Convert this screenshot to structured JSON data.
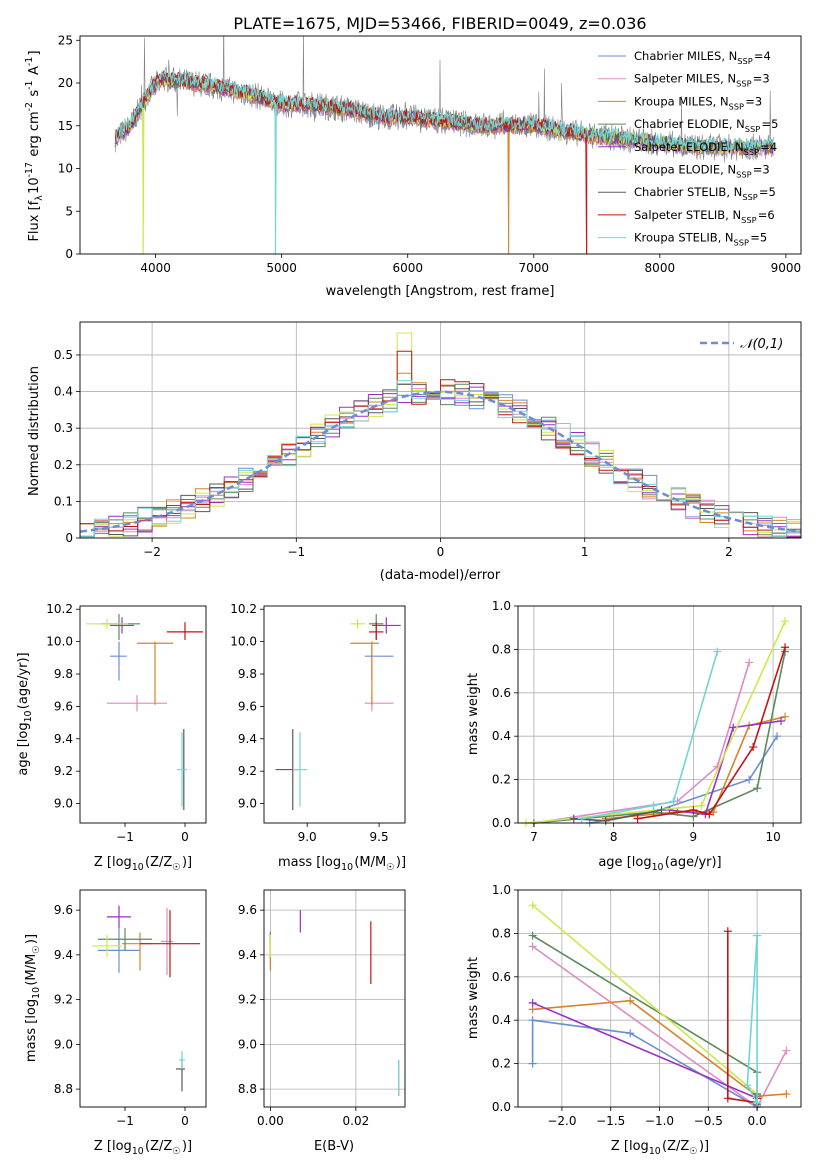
{
  "title": "PLATE=1675, MJD=53466, FIBERID=0049, z=0.036",
  "colors": [
    "#6a8dd6",
    "#e08ac4",
    "#d9822b",
    "#5d8a5d",
    "#9b30c4",
    "#cde84c",
    "#595959",
    "#c41414",
    "#6fd6d6"
  ],
  "legend": [
    "Chabrier MILES, N$_{SSP}$=4",
    "Salpeter MILES, N$_{SSP}$=3",
    "Kroupa MILES, N$_{SSP}$=3",
    "Chabrier ELODIE, N$_{SSP}$=5",
    "Salpeter ELODIE, N$_{SSP}$=4",
    "Kroupa ELODIE, N$_{SSP}$=3",
    "Chabrier STELIB, N$_{SSP}$=5",
    "Salpeter STELIB, N$_{SSP}$=6",
    "Kroupa STELIB, N$_{SSP}$=5"
  ],
  "chart_data": [
    {
      "id": "spectrum",
      "type": "line",
      "xlabel": "wavelength [Angstrom, rest frame]",
      "ylabel": "Flux [f$_\\lambda$10$^{-17}$ erg cm$^{-2}$ s$^{-1}$ A$^{-1}$]",
      "xlim": [
        3400,
        9120
      ],
      "ylim": [
        0,
        25.5
      ],
      "xticks": [
        4000,
        5000,
        6000,
        7000,
        8000,
        9000
      ],
      "yticks": [
        0,
        5,
        10,
        15,
        20,
        25
      ],
      "data_points": [
        [
          3680,
          13.5
        ],
        [
          3800,
          15
        ],
        [
          3950,
          19
        ],
        [
          4050,
          20.5
        ],
        [
          4300,
          20
        ],
        [
          4500,
          19.5
        ],
        [
          4800,
          18.5
        ],
        [
          5000,
          17.5
        ],
        [
          5200,
          17.5
        ],
        [
          5500,
          17
        ],
        [
          5800,
          16
        ],
        [
          6000,
          16
        ],
        [
          6300,
          15.5
        ],
        [
          6600,
          15
        ],
        [
          6800,
          15
        ],
        [
          7000,
          15
        ],
        [
          7200,
          14.5
        ],
        [
          7400,
          14
        ],
        [
          7700,
          13.5
        ],
        [
          8000,
          13
        ],
        [
          8300,
          12.5
        ],
        [
          8600,
          12.5
        ],
        [
          8900,
          12.5
        ]
      ],
      "model_drops": [
        {
          "series": 5,
          "x": 3900,
          "y_min": 0
        },
        {
          "series": 8,
          "x": 4950,
          "y_min": 0
        },
        {
          "series": 2,
          "x": 6800,
          "y_min": 0
        },
        {
          "series": 7,
          "x": 7420,
          "y_min": 0
        }
      ],
      "grid": false,
      "legend_position": "upper right"
    },
    {
      "id": "residuals",
      "type": "histogram",
      "xlabel": "(data-model)/error",
      "ylabel": "Normed distribution",
      "xlim": [
        -2.5,
        2.5
      ],
      "ylim": [
        0,
        0.59
      ],
      "xticks": [
        -2,
        -1,
        0,
        1,
        2
      ],
      "yticks": [
        0,
        0.1,
        0.2,
        0.3,
        0.4,
        0.5
      ],
      "reference_curve": "$\\mathcal{N}(0,1)$",
      "bin_width": 0.1,
      "peak_values_at_minus_0.3": [
        0.39,
        0.42,
        0.45,
        0.42,
        0.37,
        0.56,
        0.42,
        0.51,
        0.43
      ],
      "grid": true,
      "legend_position": "upper right"
    },
    {
      "id": "age_vs_Z",
      "type": "errorbar",
      "xlabel": "Z [log$_{10}$(Z/Z$_\\odot$)]",
      "ylabel": "age  [log$_{10}$(age/yr)]",
      "xlim": [
        -1.75,
        0.35
      ],
      "ylim": [
        8.88,
        10.22
      ],
      "xticks": [
        -1,
        0
      ],
      "yticks": [
        9.0,
        9.2,
        9.4,
        9.6,
        9.8,
        10.0,
        10.2
      ],
      "points": [
        {
          "series": 0,
          "x": -1.1,
          "y": 9.91,
          "xerr": [
            0.15,
            0.13
          ],
          "yerr": [
            0.15,
            0.09
          ]
        },
        {
          "series": 1,
          "x": -0.8,
          "y": 9.62,
          "xerr": [
            0.5,
            0.5
          ],
          "yerr": [
            0.05,
            0.05
          ]
        },
        {
          "series": 2,
          "x": -0.5,
          "y": 9.99,
          "xerr": [
            0.3,
            0.3
          ],
          "yerr": [
            0.38,
            0.01
          ]
        },
        {
          "series": 3,
          "x": -1.1,
          "y": 10.11,
          "xerr": [
            0.3,
            0.35
          ],
          "yerr": [
            0.1,
            0.06
          ]
        },
        {
          "series": 4,
          "x": -1.05,
          "y": 10.1,
          "xerr": [
            0.2,
            0.2
          ],
          "yerr": [
            0.05,
            0.05
          ]
        },
        {
          "series": 5,
          "x": -1.3,
          "y": 10.11,
          "xerr": [
            0.35,
            0.35
          ],
          "yerr": [
            0.03,
            0.03
          ]
        },
        {
          "series": 6,
          "x": -0.02,
          "y": 9.21,
          "xerr": [
            0.02,
            0.02
          ],
          "yerr": [
            0.25,
            0.25
          ]
        },
        {
          "series": 7,
          "x": 0.0,
          "y": 10.06,
          "xerr": [
            0.3,
            0.3
          ],
          "yerr": [
            0.05,
            0.06
          ]
        },
        {
          "series": 8,
          "x": -0.05,
          "y": 9.21,
          "xerr": [
            0.08,
            0.08
          ],
          "yerr": [
            0.23,
            0.23
          ]
        }
      ]
    },
    {
      "id": "age_vs_mass",
      "type": "errorbar",
      "xlabel": "mass [log$_{10}$(M/M$_\\odot$)]",
      "ylabel": "",
      "xlim": [
        8.7,
        9.68
      ],
      "ylim": [
        8.88,
        10.22
      ],
      "xticks": [
        9.0,
        9.5
      ],
      "yticks": [
        9.0,
        9.2,
        9.4,
        9.6,
        9.8,
        10.0,
        10.2
      ],
      "points": [
        {
          "series": 0,
          "x": 9.45,
          "y": 9.91,
          "xerr": [
            0.05,
            0.15
          ],
          "yerr": [
            0.15,
            0.09
          ]
        },
        {
          "series": 1,
          "x": 9.45,
          "y": 9.62,
          "xerr": [
            0.05,
            0.15
          ],
          "yerr": [
            0.05,
            0.05
          ]
        },
        {
          "series": 2,
          "x": 9.45,
          "y": 9.99,
          "xerr": [
            0.15,
            0.05
          ],
          "yerr": [
            0.38,
            0.01
          ]
        },
        {
          "series": 3,
          "x": 9.48,
          "y": 10.11,
          "xerr": [
            0.05,
            0.05
          ],
          "yerr": [
            0.1,
            0.06
          ]
        },
        {
          "series": 4,
          "x": 9.55,
          "y": 10.1,
          "xerr": [
            0.1,
            0.1
          ],
          "yerr": [
            0.05,
            0.05
          ]
        },
        {
          "series": 5,
          "x": 9.35,
          "y": 10.11,
          "xerr": [
            0.05,
            0.05
          ],
          "yerr": [
            0.03,
            0.03
          ]
        },
        {
          "series": 6,
          "x": 8.9,
          "y": 9.21,
          "xerr": [
            0.12,
            0.05
          ],
          "yerr": [
            0.25,
            0.25
          ]
        },
        {
          "series": 7,
          "x": 9.48,
          "y": 10.06,
          "xerr": [
            0.05,
            0.05
          ],
          "yerr": [
            0.05,
            0.06
          ]
        },
        {
          "series": 8,
          "x": 8.95,
          "y": 9.21,
          "xerr": [
            0.05,
            0.05
          ],
          "yerr": [
            0.23,
            0.23
          ]
        }
      ]
    },
    {
      "id": "weight_vs_age",
      "type": "line",
      "xlabel": "age  [log$_{10}$(age/yr)]",
      "ylabel": "mass weight",
      "xlim": [
        6.8,
        10.35
      ],
      "ylim": [
        0,
        1.0
      ],
      "xticks": [
        7,
        8,
        9,
        10
      ],
      "yticks": [
        0.0,
        0.2,
        0.4,
        0.6,
        0.8,
        1.0
      ],
      "grid": true,
      "series": [
        {
          "ci": 0,
          "x": [
            7.7,
            8.5,
            9.7,
            10.05
          ],
          "y": [
            0.0,
            0.05,
            0.2,
            0.4
          ]
        },
        {
          "ci": 1,
          "x": [
            7.0,
            8.8,
            9.3,
            9.7
          ],
          "y": [
            0.0,
            0.1,
            0.26,
            0.74
          ]
        },
        {
          "ci": 2,
          "x": [
            7.9,
            8.8,
            9.25,
            9.7,
            10.15
          ],
          "y": [
            0.02,
            0.05,
            0.05,
            0.45,
            0.49
          ]
        },
        {
          "ci": 3,
          "x": [
            7.0,
            8.5,
            9.0,
            9.8,
            10.15
          ],
          "y": [
            0.0,
            0.05,
            0.03,
            0.16,
            0.79
          ]
        },
        {
          "ci": 4,
          "x": [
            8.7,
            9.15,
            9.5,
            10.1
          ],
          "y": [
            0.06,
            0.04,
            0.44,
            0.47
          ]
        },
        {
          "ci": 5,
          "x": [
            6.9,
            9.1,
            10.15
          ],
          "y": [
            0.0,
            0.08,
            0.93
          ]
        },
        {
          "ci": 6,
          "x": [
            7.5,
            7.9,
            8.6
          ],
          "y": [
            0.02,
            0.01,
            0.06
          ]
        },
        {
          "ci": 7,
          "x": [
            8.3,
            9.0,
            9.2,
            9.75,
            10.15
          ],
          "y": [
            0.02,
            0.06,
            0.04,
            0.35,
            0.81
          ]
        },
        {
          "ci": 8,
          "x": [
            7.6,
            8.5,
            8.75,
            9.3
          ],
          "y": [
            0.02,
            0.08,
            0.1,
            0.79
          ]
        }
      ]
    },
    {
      "id": "mass_vs_Z",
      "type": "errorbar",
      "xlabel": "Z [log$_{10}$(Z/Z$_\\odot$)]",
      "ylabel": "mass [log$_{10}$(M/M$_\\odot$)]",
      "xlim": [
        -1.75,
        0.35
      ],
      "ylim": [
        8.72,
        9.69
      ],
      "xticks": [
        -1,
        0
      ],
      "yticks": [
        8.8,
        9.0,
        9.2,
        9.4,
        9.6
      ],
      "points": [
        {
          "series": 0,
          "x": -1.1,
          "y": 9.42,
          "xerr": [
            0.35,
            0.35
          ],
          "yerr": [
            0.1,
            0.1
          ]
        },
        {
          "series": 1,
          "x": -0.3,
          "y": 9.46,
          "xerr": [
            0.1,
            0.1
          ],
          "yerr": [
            0.15,
            0.15
          ]
        },
        {
          "series": 2,
          "x": -0.75,
          "y": 9.45,
          "xerr": [
            0.3,
            0.2
          ],
          "yerr": [
            0.12,
            0.05
          ]
        },
        {
          "series": 3,
          "x": -1.0,
          "y": 9.47,
          "xerr": [
            0.45,
            0.45
          ],
          "yerr": [
            0.05,
            0.05
          ]
        },
        {
          "series": 4,
          "x": -1.1,
          "y": 9.57,
          "xerr": [
            0.2,
            0.2
          ],
          "yerr": [
            0.05,
            0.05
          ]
        },
        {
          "series": 5,
          "x": -1.3,
          "y": 9.44,
          "xerr": [
            0.25,
            0.25
          ],
          "yerr": [
            0.05,
            0.05
          ]
        },
        {
          "series": 6,
          "x": -0.05,
          "y": 8.89,
          "xerr": [
            0.1,
            0.05
          ],
          "yerr": [
            0.1,
            0.05
          ]
        },
        {
          "series": 7,
          "x": -0.25,
          "y": 9.45,
          "xerr": [
            0.5,
            0.5
          ],
          "yerr": [
            0.15,
            0.15
          ]
        },
        {
          "series": 8,
          "x": -0.05,
          "y": 8.93,
          "xerr": [
            0.05,
            0.05
          ],
          "yerr": [
            0.04,
            0.04
          ]
        }
      ]
    },
    {
      "id": "mass_vs_ebv",
      "type": "errorbar",
      "xlabel": "E(B-V)",
      "ylabel": "",
      "xlim": [
        -0.0015,
        0.0315
      ],
      "ylim": [
        8.72,
        9.69
      ],
      "xticks": [
        0.0,
        0.02
      ],
      "yticks": [
        8.8,
        9.0,
        9.2,
        9.4,
        9.6
      ],
      "grid": true,
      "points": [
        {
          "series": 0,
          "x": 0.0,
          "y": 9.42,
          "xerr": [
            0,
            0
          ],
          "yerr": [
            0.05,
            0.05
          ]
        },
        {
          "series": 1,
          "x": 0.0,
          "y": 9.46,
          "xerr": [
            0,
            0
          ],
          "yerr": [
            0.05,
            0.05
          ]
        },
        {
          "series": 2,
          "x": 0.0,
          "y": 9.45,
          "xerr": [
            0,
            0
          ],
          "yerr": [
            0.12,
            0.05
          ]
        },
        {
          "series": 3,
          "x": 0.0,
          "y": 9.47,
          "xerr": [
            0,
            0
          ],
          "yerr": [
            0.03,
            0.03
          ]
        },
        {
          "series": 4,
          "x": 0.007,
          "y": 9.55,
          "xerr": [
            0,
            0
          ],
          "yerr": [
            0.05,
            0.05
          ]
        },
        {
          "series": 5,
          "x": 0.0,
          "y": 9.44,
          "xerr": [
            0,
            0
          ],
          "yerr": [
            0.05,
            0.05
          ]
        },
        {
          "series": 6,
          "x": 0.03,
          "y": 8.85,
          "xerr": [
            0,
            0
          ],
          "yerr": [
            0.08,
            0.08
          ]
        },
        {
          "series": 7,
          "x": 0.0235,
          "y": 9.41,
          "xerr": [
            0,
            0
          ],
          "yerr": [
            0.14,
            0.14
          ]
        },
        {
          "series": 8,
          "x": 0.03,
          "y": 8.85,
          "xerr": [
            0,
            0
          ],
          "yerr": [
            0.08,
            0.08
          ]
        }
      ]
    },
    {
      "id": "weight_vs_Z",
      "type": "line",
      "xlabel": "Z [log$_{10}$(Z/Z$_\\odot$)]",
      "ylabel": "mass weight",
      "xlim": [
        -2.45,
        0.45
      ],
      "ylim": [
        0,
        1.0
      ],
      "xticks": [
        -2.0,
        -1.5,
        -1.0,
        -0.5,
        0.0
      ],
      "yticks": [
        0.0,
        0.2,
        0.4,
        0.6,
        0.8,
        1.0
      ],
      "grid": true,
      "series": [
        {
          "ci": 0,
          "x": [
            -2.3,
            -2.3,
            -1.3,
            0.0
          ],
          "y": [
            0.2,
            0.4,
            0.34,
            0.0
          ]
        },
        {
          "ci": 1,
          "x": [
            -2.3,
            0.0,
            0.3
          ],
          "y": [
            0.74,
            0.0,
            0.26
          ]
        },
        {
          "ci": 2,
          "x": [
            -2.3,
            -1.3,
            0.0,
            0.3
          ],
          "y": [
            0.45,
            0.49,
            0.05,
            0.06
          ]
        },
        {
          "ci": 3,
          "x": [
            -2.3,
            0.0,
            0.0
          ],
          "y": [
            0.79,
            0.16,
            0.05
          ]
        },
        {
          "ci": 4,
          "x": [
            -2.3,
            0.0,
            0.0
          ],
          "y": [
            0.48,
            0.04,
            0.02
          ]
        },
        {
          "ci": 5,
          "x": [
            -2.3,
            0.0
          ],
          "y": [
            0.93,
            0.06
          ]
        },
        {
          "ci": 6,
          "x": [
            0.0,
            0.0,
            0.0
          ],
          "y": [
            0.06,
            0.02,
            0.01
          ]
        },
        {
          "ci": 7,
          "x": [
            -0.3,
            -0.3,
            0.0,
            0.0
          ],
          "y": [
            0.81,
            0.04,
            0.02,
            0.04
          ]
        },
        {
          "ci": 8,
          "x": [
            0.0,
            0.0,
            -0.1,
            0.0
          ],
          "y": [
            0.79,
            0.02,
            0.1,
            0.79
          ]
        }
      ]
    }
  ]
}
